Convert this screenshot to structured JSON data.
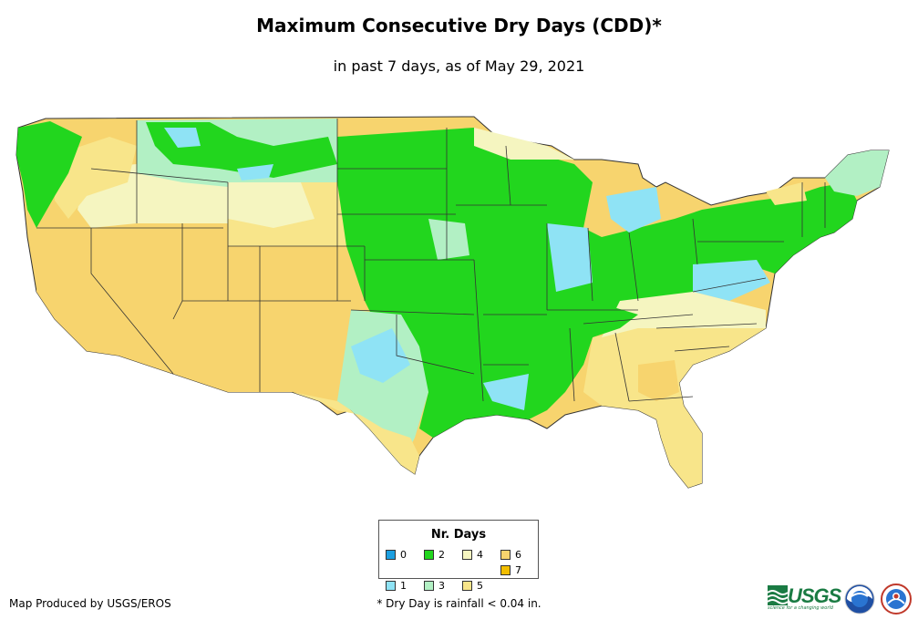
{
  "title": "Maximum Consecutive Dry Days (CDD)*",
  "subtitle": "in past 7 days, as of May 29, 2021",
  "legend": {
    "title": "Nr. Days",
    "items": [
      {
        "label": "0",
        "color": "#1c9fe0"
      },
      {
        "label": "2",
        "color": "#22d61e"
      },
      {
        "label": "4",
        "color": "#f5f5c0"
      },
      {
        "label": "6",
        "color": "#f7d46e"
      },
      {
        "label": "7",
        "color": "#f2be00"
      },
      {
        "label": "1",
        "color": "#8fe3f5"
      },
      {
        "label": "3",
        "color": "#b2f0c4"
      },
      {
        "label": "5",
        "color": "#f8e58a"
      }
    ]
  },
  "map": {
    "region": "Contiguous United States",
    "palette": {
      "day0": "#1c9fe0",
      "day1": "#8fe3f5",
      "day2": "#22d61e",
      "day3": "#b2f0c4",
      "day4": "#f5f5c0",
      "day5": "#f8e58a",
      "day6": "#f7d46e",
      "day7": "#f2be00",
      "border": "#333333"
    }
  },
  "footer": {
    "credit": "Map Produced by USGS/EROS",
    "note": "* Dry Day is rainfall < 0.04 in."
  },
  "logos": {
    "usgs": "USGS",
    "usgs_tagline": "science for a changing world",
    "noaa": "noaa",
    "nws": "nws-logo"
  }
}
